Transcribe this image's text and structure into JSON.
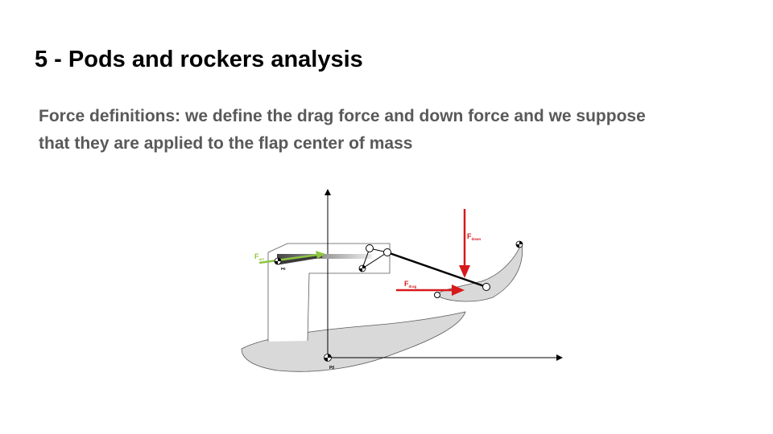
{
  "slide": {
    "title": "5 - Pods and rockers analysis",
    "body_lines": [
      "Force definitions: we define the drag force and down force and we suppose",
      "that they are applied to the flap center of mass"
    ]
  },
  "diagram": {
    "labels": {
      "actuator_force_main": "F",
      "actuator_force_sub": "act",
      "down_force_main": "F",
      "down_force_sub": "down",
      "drag_force_main": "F",
      "drag_force_sub": "drag",
      "origin_main": "P0",
      "origin_pod": "P0"
    },
    "colors": {
      "force_red": "#d7191c",
      "actuator_green": "#8dc63f",
      "wing_fill": "#d9d9d9",
      "outline": "#595959"
    }
  }
}
